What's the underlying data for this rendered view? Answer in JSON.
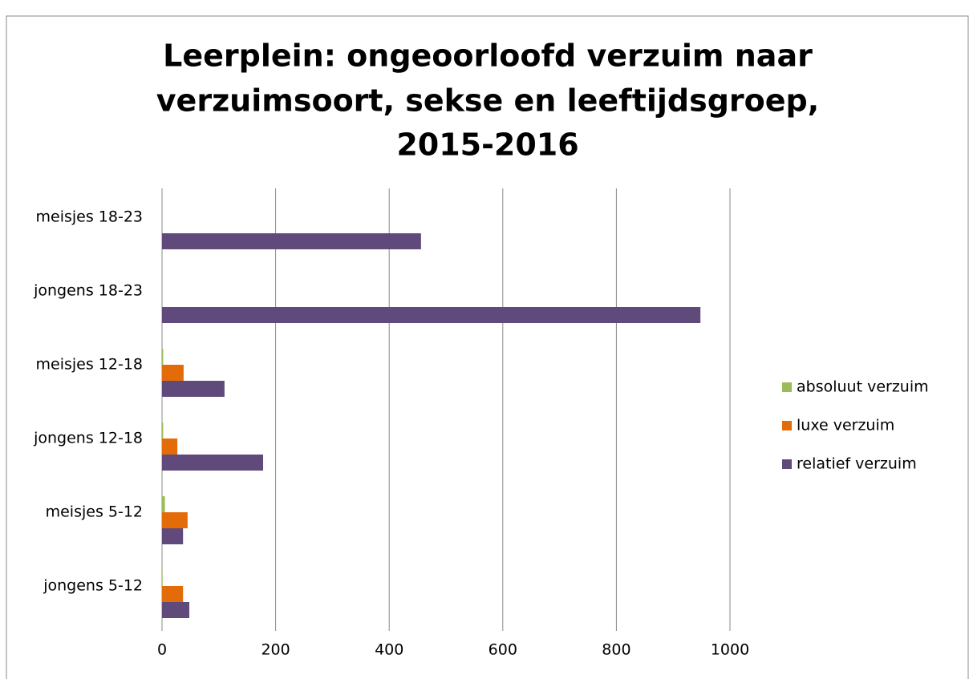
{
  "chart_data": {
    "type": "hbar",
    "title": [
      "Leerplein: ongeoorloofd verzuim naar",
      "verzuimsoort, sekse en leeftijdsgroep,",
      "2015-2016"
    ],
    "categories": [
      "meisjes 18-23",
      "jongens 18-23",
      "meisjes 12-18",
      "jongens 12-18",
      "meisjes 5-12",
      "jongens 5-12"
    ],
    "series": [
      {
        "name": "absoluut verzuim",
        "color": "#9bbb59",
        "values": [
          0,
          0,
          2,
          2,
          5,
          1
        ]
      },
      {
        "name": "luxe verzuim",
        "color": "#e36c09",
        "values": [
          0,
          0,
          38,
          27,
          45,
          37
        ]
      },
      {
        "name": "relatief verzuim",
        "color": "#604a7b",
        "values": [
          456,
          948,
          110,
          178,
          37,
          48
        ]
      }
    ],
    "xlim": [
      0,
      1000
    ],
    "xticks": [
      0,
      200,
      400,
      600,
      800,
      1000
    ],
    "grid": true,
    "legend": "right"
  }
}
